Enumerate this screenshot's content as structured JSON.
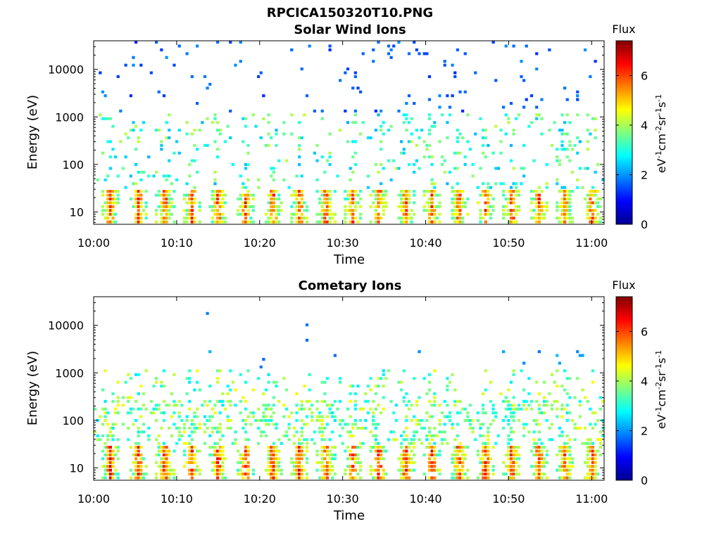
{
  "figure_title": "RPCICA150320T10.PNG",
  "chart_data": [
    {
      "type": "heatmap",
      "title": "Solar Wind Ions",
      "xlabel": "Time",
      "ylabel": "Energy (eV)",
      "y_scale": "log",
      "ylim": [
        5.5,
        40000
      ],
      "yticks": [
        10,
        100,
        1000,
        10000
      ],
      "ytick_labels": [
        "10",
        "100",
        "1000",
        "10000"
      ],
      "x_minutes_range": [
        0,
        61.5
      ],
      "xticks_minutes": [
        0,
        10,
        20,
        30,
        40,
        50,
        60
      ],
      "xtick_labels": [
        "10:00",
        "10:10",
        "10:20",
        "10:30",
        "10:40",
        "10:50",
        "11:00"
      ],
      "colorbar": {
        "label": "Flux",
        "unit_label": "eV-1cm-2sr-1s-1",
        "range": [
          0,
          7.4
        ],
        "ticks": [
          0,
          2,
          4,
          6
        ],
        "tick_labels": [
          "0",
          "2",
          "4",
          "6"
        ],
        "colormap": "jet"
      },
      "pattern": {
        "seed": 7,
        "bursts_minutes": [
          2.0,
          5.4,
          8.6,
          11.8,
          15.0,
          18.3,
          21.6,
          24.8,
          28.0,
          31.2,
          34.4,
          37.6,
          40.8,
          44.0,
          47.2,
          50.4,
          53.6,
          56.8,
          60.0
        ],
        "low_energy_peak_flux": 6.8,
        "mid_energy_flux": 3.2,
        "high_energy_flux": 1.6
      }
    },
    {
      "type": "heatmap",
      "title": "Cometary Ions",
      "xlabel": "Time",
      "ylabel": "Energy (eV)",
      "y_scale": "log",
      "ylim": [
        5.5,
        40000
      ],
      "yticks": [
        10,
        100,
        1000,
        10000
      ],
      "ytick_labels": [
        "10",
        "100",
        "1000",
        "10000"
      ],
      "x_minutes_range": [
        0,
        61.5
      ],
      "xticks_minutes": [
        0,
        10,
        20,
        30,
        40,
        50,
        60
      ],
      "xtick_labels": [
        "10:00",
        "10:10",
        "10:20",
        "10:30",
        "10:40",
        "10:50",
        "11:00"
      ],
      "colorbar": {
        "label": "Flux",
        "unit_label": "eV-1cm-2sr-1s-1",
        "range": [
          0,
          7.4
        ],
        "ticks": [
          0,
          2,
          4,
          6
        ],
        "tick_labels": [
          "0",
          "2",
          "4",
          "6"
        ],
        "colormap": "jet"
      },
      "pattern": {
        "seed": 23,
        "bursts_minutes": [
          2.0,
          5.4,
          8.6,
          11.8,
          15.0,
          18.3,
          21.6,
          24.8,
          28.0,
          31.2,
          34.4,
          37.6,
          40.8,
          44.0,
          47.2,
          50.4,
          53.6,
          56.8,
          60.0
        ],
        "low_energy_peak_flux": 7.0,
        "mid_energy_flux": 3.6,
        "high_energy_flux": 2.0
      }
    }
  ]
}
